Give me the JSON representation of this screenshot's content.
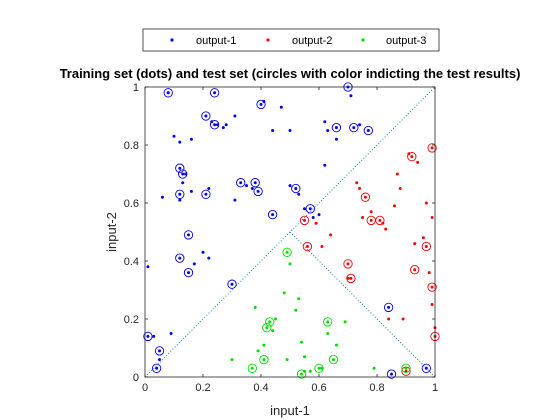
{
  "chart_data": {
    "type": "scatter",
    "title": "Training set (dots) and test set (circles with color indicting the test results)",
    "xlabel": "input-1",
    "ylabel": "input-2",
    "xlim": [
      0,
      1
    ],
    "ylim": [
      0,
      1
    ],
    "xticks": [
      "0",
      "0.2",
      "0.4",
      "0.6",
      "0.8",
      "1"
    ],
    "yticks": [
      "0",
      "0.2",
      "0.4",
      "0.6",
      "0.8",
      "1"
    ],
    "legend_position": "top",
    "series": [
      {
        "name": "output-1",
        "color": "#0000ff",
        "training": [
          [
            0.01,
            0.38
          ],
          [
            0.06,
            0.62
          ],
          [
            0.08,
            0.98
          ],
          [
            0.1,
            0.83
          ],
          [
            0.12,
            0.81
          ],
          [
            0.12,
            0.61
          ],
          [
            0.13,
            0.67
          ],
          [
            0.16,
            0.82
          ],
          [
            0.16,
            0.64
          ],
          [
            0.17,
            0.39
          ],
          [
            0.2,
            0.43
          ],
          [
            0.22,
            0.41
          ],
          [
            0.23,
            0.88
          ],
          [
            0.25,
            0.87
          ],
          [
            0.27,
            0.86
          ],
          [
            0.28,
            0.87
          ],
          [
            0.31,
            0.9
          ],
          [
            0.31,
            0.61
          ],
          [
            0.41,
            0.95
          ],
          [
            0.44,
            0.85
          ],
          [
            0.47,
            0.93
          ],
          [
            0.5,
            0.85
          ],
          [
            0.5,
            0.66
          ],
          [
            0.53,
            0.63
          ],
          [
            0.58,
            0.55
          ],
          [
            0.62,
            0.88
          ],
          [
            0.62,
            0.73
          ],
          [
            0.63,
            0.85
          ],
          [
            0.66,
            0.82
          ],
          [
            0.71,
            0.97
          ],
          [
            0.74,
            0.87
          ],
          [
            0.09,
            0.15
          ],
          [
            0.05,
            0.06
          ],
          [
            0.03,
            0.14
          ],
          [
            0.35,
            0.66
          ],
          [
            0.37,
            0.65
          ],
          [
            0.55,
            0.58
          ],
          [
            0.6,
            0.56
          ],
          [
            0.14,
            0.7
          ],
          [
            0.22,
            0.65
          ]
        ],
        "test": [
          [
            0.01,
            0.14
          ],
          [
            0.04,
            0.03
          ],
          [
            0.05,
            0.09
          ],
          [
            0.08,
            0.98
          ],
          [
            0.12,
            0.72
          ],
          [
            0.12,
            0.41
          ],
          [
            0.12,
            0.63
          ],
          [
            0.13,
            0.7
          ],
          [
            0.15,
            0.49
          ],
          [
            0.15,
            0.36
          ],
          [
            0.21,
            0.63
          ],
          [
            0.21,
            0.9
          ],
          [
            0.24,
            0.87
          ],
          [
            0.24,
            0.98
          ],
          [
            0.3,
            0.32
          ],
          [
            0.33,
            0.67
          ],
          [
            0.38,
            0.67
          ],
          [
            0.39,
            0.64
          ],
          [
            0.4,
            0.94
          ],
          [
            0.44,
            0.56
          ],
          [
            0.52,
            0.65
          ],
          [
            0.57,
            0.58
          ],
          [
            0.66,
            0.86
          ],
          [
            0.7,
            1.0
          ],
          [
            0.72,
            0.86
          ],
          [
            0.77,
            0.85
          ],
          [
            0.84,
            0.24
          ],
          [
            0.85,
            0.01
          ],
          [
            0.97,
            0.03
          ]
        ]
      },
      {
        "name": "output-2",
        "color": "#ff0000",
        "training": [
          [
            0.59,
            0.53
          ],
          [
            0.61,
            0.45
          ],
          [
            0.64,
            0.49
          ],
          [
            0.7,
            0.34
          ],
          [
            0.73,
            0.67
          ],
          [
            0.74,
            0.65
          ],
          [
            0.75,
            0.55
          ],
          [
            0.78,
            0.57
          ],
          [
            0.82,
            0.53
          ],
          [
            0.83,
            0.51
          ],
          [
            0.84,
            0.2
          ],
          [
            0.87,
            0.7
          ],
          [
            0.88,
            0.65
          ],
          [
            0.89,
            0.2
          ],
          [
            0.91,
            0.77
          ],
          [
            0.94,
            0.74
          ],
          [
            0.96,
            0.48
          ],
          [
            0.98,
            0.36
          ],
          [
            0.99,
            0.25
          ],
          [
            1.0,
            0.17
          ],
          [
            0.86,
            0.59
          ],
          [
            0.93,
            0.46
          ],
          [
            0.97,
            0.6
          ],
          [
            0.99,
            0.55
          ]
        ],
        "test": [
          [
            0.55,
            0.54
          ],
          [
            0.56,
            0.45
          ],
          [
            0.7,
            0.39
          ],
          [
            0.71,
            0.34
          ],
          [
            0.76,
            0.62
          ],
          [
            0.78,
            0.54
          ],
          [
            0.81,
            0.54
          ],
          [
            0.9,
            0.02
          ],
          [
            0.92,
            0.76
          ],
          [
            0.93,
            0.37
          ],
          [
            0.97,
            0.45
          ],
          [
            0.99,
            0.31
          ],
          [
            0.99,
            0.79
          ],
          [
            1.0,
            0.14
          ]
        ]
      },
      {
        "name": "output-3",
        "color": "#00dd00",
        "training": [
          [
            0.3,
            0.06
          ],
          [
            0.38,
            0.24
          ],
          [
            0.39,
            0.09
          ],
          [
            0.41,
            0.11
          ],
          [
            0.44,
            0.16
          ],
          [
            0.45,
            0.2
          ],
          [
            0.48,
            0.29
          ],
          [
            0.49,
            0.06
          ],
          [
            0.5,
            0.39
          ],
          [
            0.52,
            0.23
          ],
          [
            0.53,
            0.27
          ],
          [
            0.54,
            0.12
          ],
          [
            0.55,
            0.02
          ],
          [
            0.57,
            0.02
          ],
          [
            0.61,
            0.03
          ],
          [
            0.63,
            0.15
          ],
          [
            0.66,
            0.11
          ],
          [
            0.69,
            0.19
          ],
          [
            0.79,
            0.03
          ],
          [
            0.55,
            0.07
          ]
        ],
        "test": [
          [
            0.37,
            0.03
          ],
          [
            0.41,
            0.06
          ],
          [
            0.42,
            0.17
          ],
          [
            0.43,
            0.19
          ],
          [
            0.49,
            0.43
          ],
          [
            0.54,
            0.01
          ],
          [
            0.6,
            0.03
          ],
          [
            0.63,
            0.19
          ],
          [
            0.65,
            0.06
          ],
          [
            0.9,
            0.03
          ]
        ]
      }
    ],
    "reference_lines": [
      {
        "style": "dotted",
        "color": "#0072bd",
        "from": [
          0,
          0
        ],
        "to": [
          1,
          1
        ]
      },
      {
        "style": "dotted",
        "color": "#0072bd",
        "from": [
          0.5,
          0.5
        ],
        "to": [
          1,
          0
        ]
      }
    ]
  }
}
